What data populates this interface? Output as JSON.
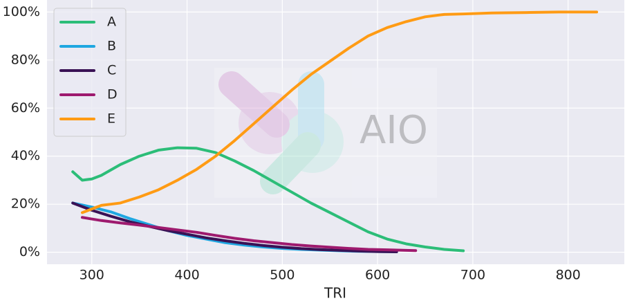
{
  "chart_data": {
    "type": "line",
    "x_label": "TRI",
    "watermark": "AIO",
    "xlim": [
      253,
      859
    ],
    "xticks": [
      300,
      400,
      500,
      600,
      700,
      800
    ],
    "ylim": [
      -5,
      105
    ],
    "yticks": [
      {
        "value": 0,
        "label": "0%"
      },
      {
        "value": 20,
        "label": "20%"
      },
      {
        "value": 40,
        "label": "40%"
      },
      {
        "value": 60,
        "label": "60%"
      },
      {
        "value": 80,
        "label": "80%"
      },
      {
        "value": 100,
        "label": "100%"
      }
    ],
    "grid": true,
    "legend": "upper left",
    "series": [
      {
        "name": "A",
        "color": "#2cbd78",
        "x": [
          280,
          290,
          300,
          310,
          330,
          350,
          370,
          390,
          410,
          430,
          450,
          470,
          490,
          510,
          530,
          550,
          570,
          590,
          610,
          630,
          650,
          670,
          690
        ],
        "values": [
          33.5,
          30,
          30.5,
          32,
          36.5,
          40,
          42.5,
          43.5,
          43.3,
          41.5,
          38,
          34,
          29.5,
          25,
          20.5,
          16.5,
          12.5,
          8.5,
          5.5,
          3.5,
          2.2,
          1.2,
          0.6
        ]
      },
      {
        "name": "B",
        "color": "#1fa7e1",
        "x": [
          280,
          300,
          320,
          340,
          360,
          380,
          400,
          420,
          440,
          460,
          480,
          500,
          520,
          540,
          560,
          580,
          600,
          620
        ],
        "values": [
          20.5,
          18.8,
          16.8,
          14,
          11.5,
          9,
          7,
          5.5,
          4,
          3,
          2.2,
          1.6,
          1.2,
          0.9,
          0.6,
          0.4,
          0.3,
          0.2
        ]
      },
      {
        "name": "C",
        "color": "#3a1255",
        "x": [
          280,
          300,
          320,
          340,
          360,
          380,
          400,
          420,
          440,
          460,
          480,
          500,
          520,
          540,
          560,
          580,
          600,
          620
        ],
        "values": [
          20.5,
          17.5,
          15,
          12.7,
          10.8,
          9,
          7.5,
          6,
          4.8,
          3.7,
          2.8,
          2.1,
          1.5,
          1.1,
          0.8,
          0.5,
          0.3,
          0.2
        ]
      },
      {
        "name": "D",
        "color": "#9e1a6e",
        "x": [
          290,
          310,
          330,
          350,
          370,
          390,
          410,
          430,
          450,
          470,
          490,
          510,
          530,
          550,
          570,
          590,
          610,
          640
        ],
        "values": [
          14.5,
          13.2,
          12.2,
          11.3,
          10.3,
          9.3,
          8.3,
          7,
          5.8,
          4.8,
          4,
          3.2,
          2.6,
          2.1,
          1.6,
          1.2,
          1,
          0.7
        ]
      },
      {
        "name": "E",
        "color": "#ff9b14",
        "x": [
          290,
          310,
          330,
          350,
          370,
          390,
          410,
          430,
          450,
          470,
          490,
          510,
          530,
          550,
          570,
          590,
          610,
          630,
          650,
          670,
          690,
          720,
          760,
          790,
          830
        ],
        "values": [
          16.5,
          19.5,
          20.5,
          23,
          26,
          30,
          34.5,
          40,
          46.5,
          53.5,
          60.5,
          67.5,
          74,
          79.5,
          85,
          90,
          93.5,
          96,
          98,
          99,
          99.2,
          99.6,
          99.8,
          100,
          100
        ]
      }
    ]
  }
}
